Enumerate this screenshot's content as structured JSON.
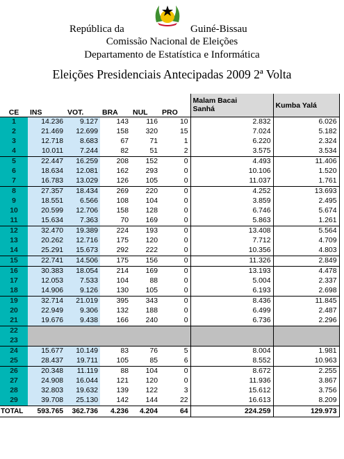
{
  "header": {
    "line1_left": "República da",
    "line1_right": "Guiné-Bissau",
    "line2": "Comissão Nacional de Eleições",
    "line3": "Departamento de Estatística e Informática",
    "title": "Eleições Presidenciais Antecipadas 2009 2ª Volta"
  },
  "table": {
    "headers": {
      "ce": "CE",
      "ins": "INS",
      "vot": "VOT.",
      "bra": "BRA",
      "nul": "NUL",
      "pro": "PRO",
      "mb_line1": "Malam Bacai",
      "mb_line2": "Sanhá",
      "ky": "Kumba Yalá"
    },
    "rows": [
      {
        "ce": "1",
        "ins": "14.236",
        "vot": "9.127",
        "bra": "143",
        "nul": "116",
        "pro": "10",
        "mb": "2.832",
        "ky": "6.026"
      },
      {
        "ce": "2",
        "ins": "21.469",
        "vot": "12.699",
        "bra": "158",
        "nul": "320",
        "pro": "15",
        "mb": "7.024",
        "ky": "5.182"
      },
      {
        "ce": "3",
        "ins": "12.718",
        "vot": "8.683",
        "bra": "67",
        "nul": "71",
        "pro": "1",
        "mb": "6.220",
        "ky": "2.324"
      },
      {
        "ce": "4",
        "ins": "10.011",
        "vot": "7.244",
        "bra": "82",
        "nul": "51",
        "pro": "2",
        "mb": "3.575",
        "ky": "3.534"
      },
      {
        "ce": "5",
        "ins": "22.447",
        "vot": "16.259",
        "bra": "208",
        "nul": "152",
        "pro": "0",
        "mb": "4.493",
        "ky": "11.406"
      },
      {
        "ce": "6",
        "ins": "18.634",
        "vot": "12.081",
        "bra": "162",
        "nul": "293",
        "pro": "0",
        "mb": "10.106",
        "ky": "1.520"
      },
      {
        "ce": "7",
        "ins": "16.783",
        "vot": "13.029",
        "bra": "126",
        "nul": "105",
        "pro": "0",
        "mb": "11.037",
        "ky": "1.761"
      },
      {
        "ce": "8",
        "ins": "27.357",
        "vot": "18.434",
        "bra": "269",
        "nul": "220",
        "pro": "0",
        "mb": "4.252",
        "ky": "13.693"
      },
      {
        "ce": "9",
        "ins": "18.551",
        "vot": "6.566",
        "bra": "108",
        "nul": "104",
        "pro": "0",
        "mb": "3.859",
        "ky": "2.495"
      },
      {
        "ce": "10",
        "ins": "20.599",
        "vot": "12.706",
        "bra": "158",
        "nul": "128",
        "pro": "0",
        "mb": "6.746",
        "ky": "5.674"
      },
      {
        "ce": "11",
        "ins": "15.634",
        "vot": "7.363",
        "bra": "70",
        "nul": "169",
        "pro": "0",
        "mb": "5.863",
        "ky": "1.261"
      },
      {
        "ce": "12",
        "ins": "32.470",
        "vot": "19.389",
        "bra": "224",
        "nul": "193",
        "pro": "0",
        "mb": "13.408",
        "ky": "5.564"
      },
      {
        "ce": "13",
        "ins": "20.262",
        "vot": "12.716",
        "bra": "175",
        "nul": "120",
        "pro": "0",
        "mb": "7.712",
        "ky": "4.709"
      },
      {
        "ce": "14",
        "ins": "25.291",
        "vot": "15.673",
        "bra": "292",
        "nul": "222",
        "pro": "0",
        "mb": "10.356",
        "ky": "4.803"
      },
      {
        "ce": "15",
        "ins": "22.741",
        "vot": "14.506",
        "bra": "175",
        "nul": "156",
        "pro": "0",
        "mb": "11.326",
        "ky": "2.849"
      },
      {
        "ce": "16",
        "ins": "30.383",
        "vot": "18.054",
        "bra": "214",
        "nul": "169",
        "pro": "0",
        "mb": "13.193",
        "ky": "4.478"
      },
      {
        "ce": "17",
        "ins": "12.053",
        "vot": "7.533",
        "bra": "104",
        "nul": "88",
        "pro": "0",
        "mb": "5.004",
        "ky": "2.337"
      },
      {
        "ce": "18",
        "ins": "14.906",
        "vot": "9.126",
        "bra": "130",
        "nul": "105",
        "pro": "0",
        "mb": "6.193",
        "ky": "2.698"
      },
      {
        "ce": "19",
        "ins": "32.714",
        "vot": "21.019",
        "bra": "395",
        "nul": "343",
        "pro": "0",
        "mb": "8.436",
        "ky": "11.845"
      },
      {
        "ce": "20",
        "ins": "22.949",
        "vot": "9.306",
        "bra": "132",
        "nul": "188",
        "pro": "0",
        "mb": "6.499",
        "ky": "2.487"
      },
      {
        "ce": "21",
        "ins": "19.676",
        "vot": "9.438",
        "bra": "166",
        "nul": "240",
        "pro": "0",
        "mb": "6.736",
        "ky": "2.296"
      },
      {
        "ce": "22",
        "empty": true
      },
      {
        "ce": "23",
        "empty": true
      },
      {
        "ce": "24",
        "ins": "15.677",
        "vot": "10.149",
        "bra": "83",
        "nul": "76",
        "pro": "5",
        "mb": "8.004",
        "ky": "1.981"
      },
      {
        "ce": "25",
        "ins": "28.437",
        "vot": "19.711",
        "bra": "105",
        "nul": "85",
        "pro": "6",
        "mb": "8.552",
        "ky": "10.963"
      },
      {
        "ce": "26",
        "ins": "20.348",
        "vot": "11.119",
        "bra": "88",
        "nul": "104",
        "pro": "0",
        "mb": "8.672",
        "ky": "2.255"
      },
      {
        "ce": "27",
        "ins": "24.908",
        "vot": "16.044",
        "bra": "121",
        "nul": "120",
        "pro": "0",
        "mb": "11.936",
        "ky": "3.867"
      },
      {
        "ce": "28",
        "ins": "32.803",
        "vot": "19.632",
        "bra": "139",
        "nul": "122",
        "pro": "3",
        "mb": "15.612",
        "ky": "3.756"
      },
      {
        "ce": "29",
        "ins": "39.708",
        "vot": "25.130",
        "bra": "142",
        "nul": "144",
        "pro": "22",
        "mb": "16.613",
        "ky": "8.209"
      }
    ],
    "total": {
      "ce": "TOTAL",
      "ins": "593.765",
      "vot": "362.736",
      "bra": "4.236",
      "nul": "4.204",
      "pro": "64",
      "mb": "224.259",
      "ky": "129.973"
    }
  },
  "colors": {
    "ce_cell": "#00b5b5",
    "ins_vot_cell": "#cfe7f7",
    "header_grey": "#d9d9d9",
    "empty_row": "#c0c0c0"
  },
  "emblem": {
    "icon": "national-emblem-icon"
  }
}
